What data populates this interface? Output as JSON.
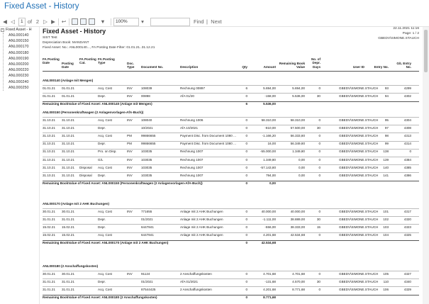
{
  "window": {
    "title": "Fixed Asset - History"
  },
  "toolbar": {
    "page_current": "1",
    "page_of": "of",
    "page_total": "2",
    "zoom": "100%",
    "find_label": "Find",
    "next_label": "Next"
  },
  "tree": {
    "root_label": "Fixed Asset - H",
    "items": [
      "ANL000140",
      "ANL000150",
      "ANL000170",
      "ANL000180",
      "ANL000190",
      "ANL000200",
      "ANL000220",
      "ANL000230",
      "ANL000240",
      "ANL000250"
    ]
  },
  "report": {
    "title": "Fixed Asset - History",
    "company": "SIST Test",
    "depreciation_book": "Depreciation Book: MANDANT",
    "filter": "Fixed Asset: No.: ANL000140..., FA Posting Date Filter: 01.01.21..31.12.21",
    "date": "22.11.2021 11:16",
    "page": "Page: 1 / 2",
    "user": "GBEDV\\SIMONE.STAUCH",
    "columns": {
      "fa_posting_date": "FA Posting Date",
      "posting_date": "Posting Date",
      "fa_posting_cat": "FA Posting Cat.",
      "fa_posting_type": "FA Posting Type",
      "doc_type": "Doc. Type",
      "document_no": "Document No.",
      "description": "Description",
      "qty": "Qty",
      "amount": "Amount",
      "remaining_book_value": "Remaining Book Value",
      "no_of_depr_days": "No. of Depr. Days",
      "user_id": "User ID",
      "entry_no": "Entry No.",
      "gl_entry_no": "G/L Entry No."
    },
    "groups": [
      {
        "header": "ANL000140  (Anlage mit Mengen)",
        "rows": [
          {
            "fa_date": "01.01.21",
            "post_date": "01.01.21",
            "cat": "",
            "type": "Acq. Cost",
            "doc_type": "INV",
            "doc_no": "108039",
            "desc": "Rechnung 00897",
            "qty": "6",
            "amount": "5.694,00",
            "rbv": "5.694,00",
            "days": "0",
            "user": "GBEDV\\SIMONE.STAUCH",
            "entry": "93",
            "gl": "4299"
          },
          {
            "fa_date": "01.01.21",
            "post_date": "01.01.21",
            "cat": "",
            "type": "Depr.",
            "doc_type": "INV",
            "doc_no": "00898",
            "desc": "AfA 01/20",
            "qty": "0",
            "amount": "-158,00",
            "rbv": "5.536,00",
            "days": "30",
            "user": "GBEDV\\SIMONE.STAUCH",
            "entry": "94",
            "gl": "4302"
          }
        ],
        "total_label": "Remaining BookValue of Fixed Asset: ANL000140  (Anlage mit Mengen)",
        "total_qty": "6",
        "total_amount": "5.536,00"
      },
      {
        "header": "ANL000150  (Personenkraftwagen  (2 Anlagenvorlagen-AfA-Buch))",
        "rows": [
          {
            "fa_date": "31.10.21",
            "post_date": "31.10.21",
            "cat": "",
            "type": "Acq. Cost",
            "doc_type": "INV",
            "doc_no": "108040",
            "desc": "Rechnung 1006",
            "qty": "0",
            "amount": "58.310,00",
            "rbv": "58.310,00",
            "days": "0",
            "user": "GBEDV\\SIMONE.STAUCH",
            "entry": "95",
            "gl": "4304"
          },
          {
            "fa_date": "31.10.21",
            "post_date": "31.10.21",
            "cat": "",
            "type": "Depr.",
            "doc_type": "",
            "doc_no": "10/2021",
            "desc": "AfA 10/2021",
            "qty": "0",
            "amount": "-810,00",
            "rbv": "57.500,00",
            "days": "30",
            "user": "GBEDV\\SIMONE.STAUCH",
            "entry": "97",
            "gl": "4308"
          },
          {
            "fa_date": "31.10.21",
            "post_date": "31.10.21",
            "cat": "",
            "type": "Acq. Cost",
            "doc_type": "PM",
            "doc_no": "99866655",
            "desc": "Payment Disc. from Document 1080 ...",
            "qty": "0",
            "amount": "-1.166,20",
            "rbv": "56.333,80",
            "days": "0",
            "user": "GBEDV\\SIMONE.STAUCH",
            "entry": "98",
            "gl": "4313"
          },
          {
            "fa_date": "31.10.21",
            "post_date": "31.10.21",
            "cat": "",
            "type": "Depr.",
            "doc_type": "PM",
            "doc_no": "99866655",
            "desc": "Payment Disc. from Document 1080 ...",
            "qty": "0",
            "amount": "16,00",
            "rbv": "56.349,80",
            "days": "0",
            "user": "GBEDV\\SIMONE.STAUCH",
            "entry": "99",
            "gl": "4314"
          },
          {
            "fa_date": "31.10.21",
            "post_date": "31.10.21",
            "cat": "",
            "type": "Pro. on Disp.",
            "doc_type": "INV",
            "doc_no": "103035",
            "desc": "Rechnung 1007",
            "qty": "0",
            "amount": "-55.000,00",
            "rbv": "1.349,80",
            "days": "0",
            "user": "GBEDV\\SIMONE.STAUCH",
            "entry": "138",
            "gl": "0"
          },
          {
            "fa_date": "31.10.21",
            "post_date": "31.10.21",
            "cat": "",
            "type": "G/L",
            "doc_type": "INV",
            "doc_no": "103035",
            "desc": "Rechnung 1007",
            "qty": "0",
            "amount": "1.349,80",
            "rbv": "0,00",
            "days": "0",
            "user": "GBEDV\\SIMONE.STAUCH",
            "entry": "139",
            "gl": "4384"
          },
          {
            "fa_date": "31.10.21",
            "post_date": "31.10.21",
            "cat": "Disposal",
            "type": "Acq. Cost",
            "doc_type": "INV",
            "doc_no": "103035",
            "desc": "Rechnung 1007",
            "qty": "0",
            "amount": "-57.143,80",
            "rbv": "0,00",
            "days": "0",
            "user": "GBEDV\\SIMONE.STAUCH",
            "entry": "140",
            "gl": "4385"
          },
          {
            "fa_date": "31.10.21",
            "post_date": "31.10.21",
            "cat": "Disposal",
            "type": "Depr.",
            "doc_type": "INV",
            "doc_no": "103035",
            "desc": "Rechnung 1007",
            "qty": "0",
            "amount": "794,00",
            "rbv": "0,00",
            "days": "0",
            "user": "GBEDV\\SIMONE.STAUCH",
            "entry": "141",
            "gl": "4386"
          }
        ],
        "total_label": "Remaining BookValue of Fixed Asset: ANL000150  (Personenkraftwagen  (2 Anlagenvorlagen-AfA-Buch))",
        "total_qty": "0",
        "total_amount": "0,00"
      },
      {
        "header": "ANL000170  (Anlage mit 2 AHK Buchungen)",
        "rows": [
          {
            "fa_date": "30.01.21",
            "post_date": "30.01.21",
            "cat": "",
            "type": "Acq. Cost",
            "doc_type": "INV",
            "doc_no": "771655",
            "desc": "Anlage mit 2 AHK Buchungen",
            "qty": "0",
            "amount": "40.000,00",
            "rbv": "40.000,00",
            "days": "0",
            "user": "GBEDV\\SIMONE.STAUCH",
            "entry": "101",
            "gl": "4317"
          },
          {
            "fa_date": "31.01.21",
            "post_date": "31.01.21",
            "cat": "",
            "type": "Depr.",
            "doc_type": "",
            "doc_no": "01/2021",
            "desc": "Anlage mit 2 AHK Buchungen",
            "qty": "0",
            "amount": "-1.111,00",
            "rbv": "38.889,00",
            "days": "30",
            "user": "GBEDV\\SIMONE.STAUCH",
            "entry": "102",
            "gl": "4320"
          },
          {
            "fa_date": "15.02.21",
            "post_date": "15.02.21",
            "cat": "",
            "type": "Depr.",
            "doc_type": "",
            "doc_no": "6447841",
            "desc": "Anlage mit 2 AHK Buchungen",
            "qty": "0",
            "amount": "-556,00",
            "rbv": "38.333,00",
            "days": "15",
            "user": "GBEDV\\SIMONE.STAUCH",
            "entry": "103",
            "gl": "4323"
          },
          {
            "fa_date": "15.02.21",
            "post_date": "15.02.21",
            "cat": "",
            "type": "Acq. Cost",
            "doc_type": "",
            "doc_no": "6447841",
            "desc": "Anlage mit 2 AHK Buchungen",
            "qty": "0",
            "amount": "4.201,68",
            "rbv": "42.534,68",
            "days": "0",
            "user": "GBEDV\\SIMONE.STAUCH",
            "entry": "104",
            "gl": "4325"
          }
        ],
        "total_label": "Remaining BookValue of Fixed Asset: ANL000170  (Anlage mit 2 AHK Buchungen)",
        "total_qty": "0",
        "total_amount": "42.534,68"
      },
      {
        "header": "ANL000180  (2 Anschaffungskosten)",
        "rows": [
          {
            "fa_date": "30.01.21",
            "post_date": "30.01.21",
            "cat": "",
            "type": "Acq. Cost",
            "doc_type": "INV",
            "doc_no": "91124",
            "desc": "2 Anschaffungskosten",
            "qty": "0",
            "amount": "4.701,68",
            "rbv": "4.701,68",
            "days": "0",
            "user": "GBEDV\\SIMONE.STAUCH",
            "entry": "105",
            "gl": "4327"
          },
          {
            "fa_date": "31.01.21",
            "post_date": "31.01.21",
            "cat": "",
            "type": "Depr.",
            "doc_type": "",
            "doc_no": "01/2021",
            "desc": "AfA 01/2021",
            "qty": "0",
            "amount": "-131,68",
            "rbv": "4.570,00",
            "days": "30",
            "user": "GBEDV\\SIMONE.STAUCH",
            "entry": "110",
            "gl": "4340"
          },
          {
            "fa_date": "31.01.21",
            "post_date": "31.01.21",
            "cat": "",
            "type": "Acq. Cost",
            "doc_type": "",
            "doc_no": "87544425",
            "desc": "2 Anschaffungskosten",
            "qty": "0",
            "amount": "4.201,68",
            "rbv": "8.771,68",
            "days": "0",
            "user": "GBEDV\\SIMONE.STAUCH",
            "entry": "106",
            "gl": "4329"
          }
        ],
        "total_label": "Remaining BookValue of Fixed Asset: ANL000180  (2 Anschaffungskosten)",
        "total_qty": "0",
        "total_amount": "8.771,68"
      }
    ]
  }
}
